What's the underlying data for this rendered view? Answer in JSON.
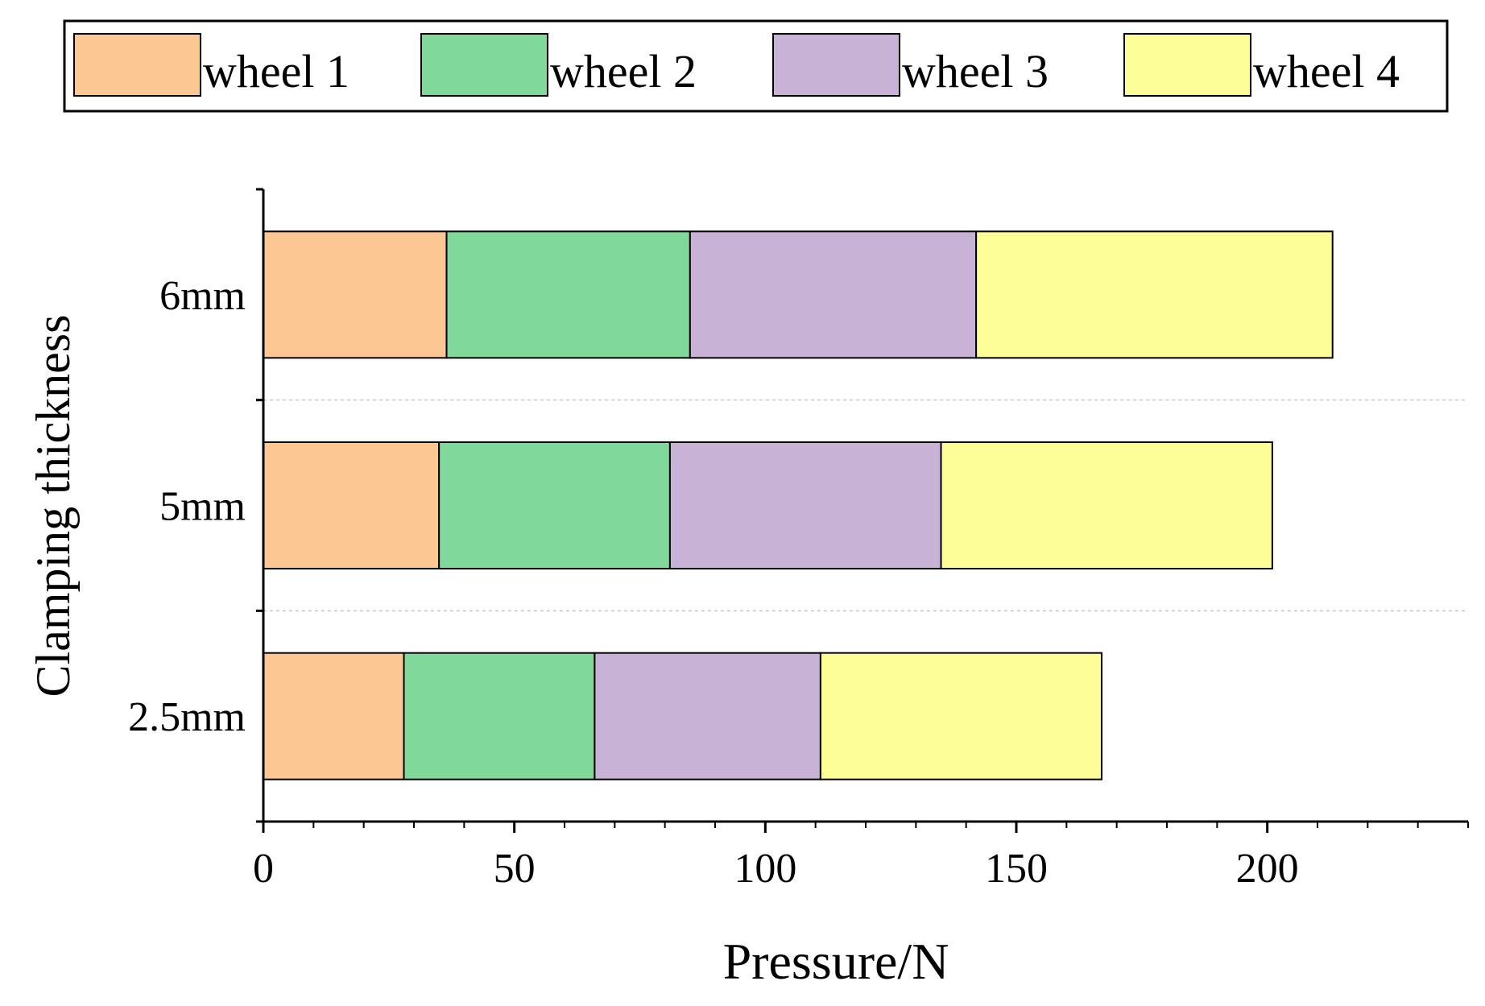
{
  "chart_data": {
    "type": "bar",
    "orientation": "horizontal",
    "stacked": true,
    "title": "",
    "xlabel": "Pressure/N",
    "ylabel": "Clamping thickness",
    "categories": [
      "2.5mm",
      "5mm",
      "6mm"
    ],
    "xlim": [
      0,
      240
    ],
    "xticks": [
      0,
      50,
      100,
      150,
      200
    ],
    "xtick_labels": [
      "0",
      "50",
      "100",
      "150",
      "200"
    ],
    "grid": "horizontal dashed separators between categories",
    "legend_position": "top",
    "series": [
      {
        "name": "wheel 1",
        "color": "#FDC794",
        "values": [
          28,
          35,
          36.5
        ]
      },
      {
        "name": "wheel 2",
        "color": "#80D99B",
        "values": [
          38,
          46,
          48.5
        ]
      },
      {
        "name": "wheel 3",
        "color": "#C8B3D6",
        "values": [
          45,
          54,
          57
        ]
      },
      {
        "name": "wheel 4",
        "color": "#FEFE98",
        "values": [
          56,
          66,
          71
        ]
      }
    ]
  }
}
